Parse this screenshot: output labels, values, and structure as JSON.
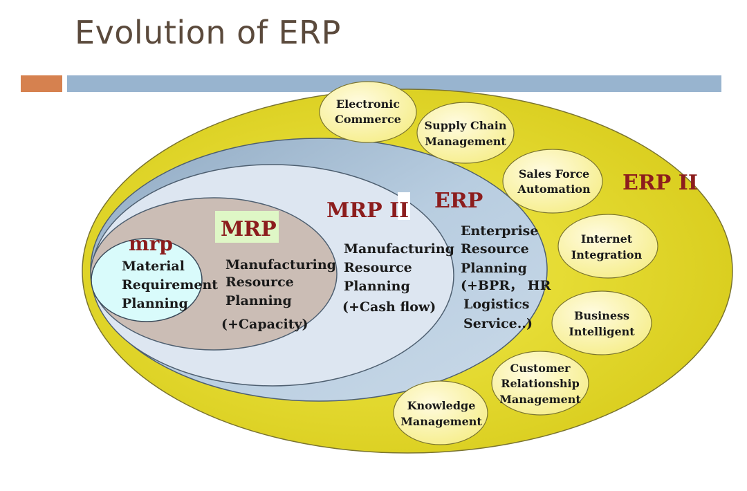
{
  "title": "Evolution of ERP",
  "layers": {
    "mrp": {
      "heading": "mrp",
      "lines": [
        "Material",
        "Requirement",
        "Planning"
      ]
    },
    "MRP": {
      "heading": "MRP",
      "lines": [
        "Manufacturing",
        "Resource",
        "Planning",
        "(+Capacity)"
      ]
    },
    "MRPII": {
      "heading": "MRP II",
      "lines": [
        "Manufacturing",
        "Resource",
        "Planning",
        "(+Cash flow)"
      ]
    },
    "ERP": {
      "heading": "ERP",
      "lines": [
        "Enterprise",
        "Resource",
        "Planning",
        "(+BPR， HR",
        "Logistics",
        "Service..)"
      ]
    },
    "ERPII": {
      "heading": "ERP II"
    }
  },
  "satellites": [
    [
      "Electronic",
      "Commerce"
    ],
    [
      "Supply Chain",
      "Management"
    ],
    [
      "Sales Force",
      "Automation"
    ],
    [
      "Internet",
      "Integration"
    ],
    [
      "Business",
      "Intelligent"
    ],
    [
      "Customer",
      "Relationship",
      "Management"
    ],
    [
      "Knowledge",
      "Management"
    ]
  ],
  "colors": {
    "title": "#5b4a3c",
    "accent_orange": "#d6814f",
    "accent_blue": "#98b4cf",
    "erp2_fill": "#e5dd2a",
    "erp_fill": "#adc4da",
    "mrp2_fill": "#dde6f1",
    "mrp_fill": "#cbbdb5",
    "mrp_small_fill": "#d9fbfb",
    "satellite_fill": "#fbf6a6",
    "heading_red": "#8c1d1d",
    "mrp_label_bg": "#dff7c6"
  }
}
